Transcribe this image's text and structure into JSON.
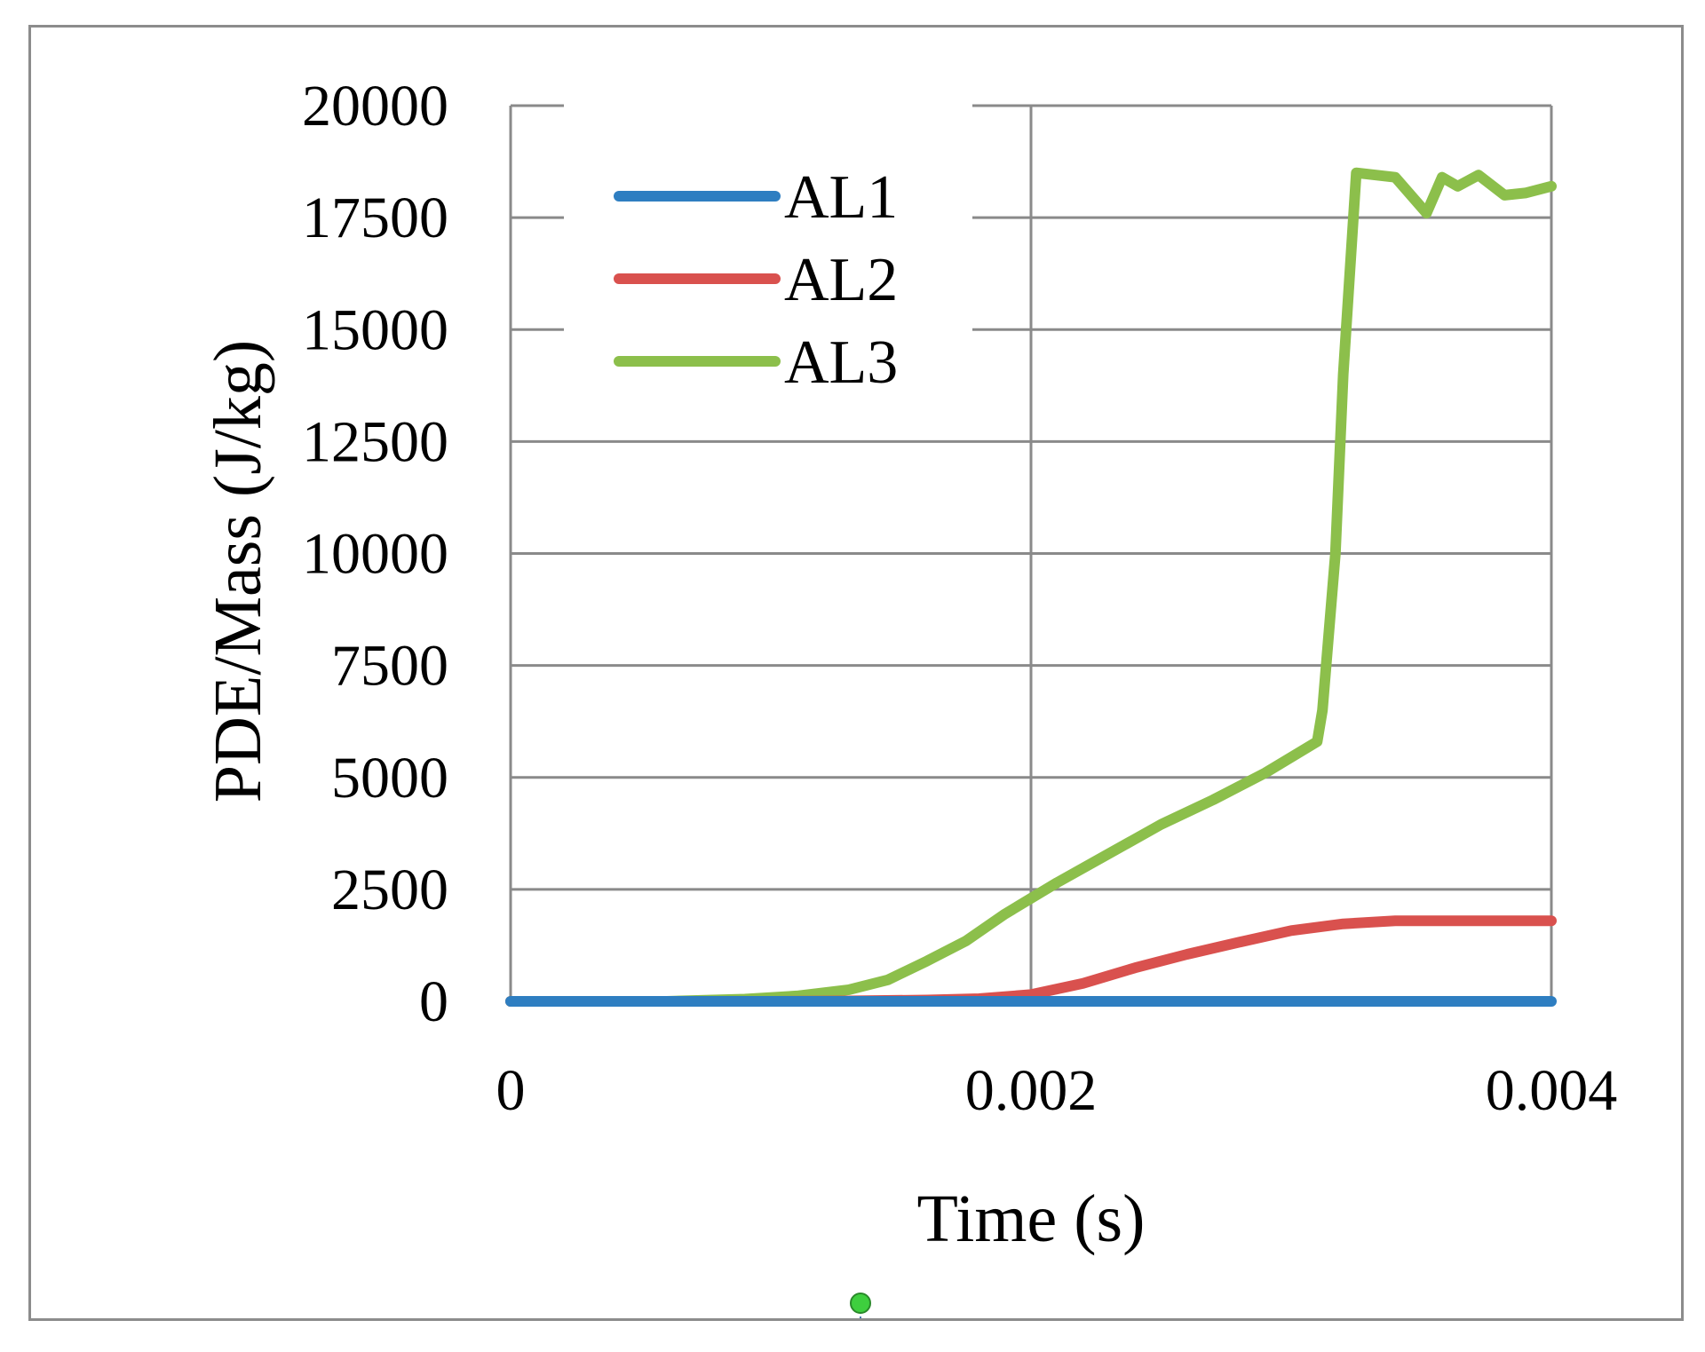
{
  "chart_data": {
    "type": "line",
    "title": "",
    "xlabel": "Time (s)",
    "ylabel": "PDE/Mass (J/kg)",
    "xlim": [
      0,
      0.004
    ],
    "ylim": [
      0,
      20000
    ],
    "x_ticks": [
      0,
      0.002,
      0.004
    ],
    "x_tick_labels": [
      "0",
      "0.002",
      "0.004"
    ],
    "y_ticks": [
      0,
      2500,
      5000,
      7500,
      10000,
      12500,
      15000,
      17500,
      20000
    ],
    "y_tick_labels": [
      "0",
      "2500",
      "5000",
      "7500",
      "10000",
      "12500",
      "15000",
      "17500",
      "20000"
    ],
    "grid": true,
    "legend_position": "top-left",
    "series": [
      {
        "name": "AL1",
        "color": "#2e7ec1",
        "points": [
          [
            0,
            0
          ],
          [
            0.001,
            0
          ],
          [
            0.002,
            0
          ],
          [
            0.003,
            0
          ],
          [
            0.004,
            0
          ]
        ]
      },
      {
        "name": "AL2",
        "color": "#d9514e",
        "points": [
          [
            0,
            0
          ],
          [
            0.001,
            0
          ],
          [
            0.0013,
            10
          ],
          [
            0.0016,
            30
          ],
          [
            0.0018,
            60
          ],
          [
            0.002,
            150
          ],
          [
            0.0022,
            400
          ],
          [
            0.0024,
            750
          ],
          [
            0.0026,
            1050
          ],
          [
            0.0028,
            1320
          ],
          [
            0.003,
            1580
          ],
          [
            0.0032,
            1730
          ],
          [
            0.0034,
            1800
          ],
          [
            0.0036,
            1800
          ],
          [
            0.004,
            1800
          ]
        ]
      },
      {
        "name": "AL3",
        "color": "#8cbf4b",
        "points": [
          [
            0,
            0
          ],
          [
            0.0006,
            0
          ],
          [
            0.0009,
            50
          ],
          [
            0.0011,
            120
          ],
          [
            0.0013,
            260
          ],
          [
            0.00145,
            480
          ],
          [
            0.0016,
            900
          ],
          [
            0.00175,
            1350
          ],
          [
            0.0019,
            1950
          ],
          [
            0.0021,
            2650
          ],
          [
            0.0023,
            3300
          ],
          [
            0.0025,
            3950
          ],
          [
            0.0027,
            4500
          ],
          [
            0.0029,
            5100
          ],
          [
            0.0031,
            5800
          ],
          [
            0.00312,
            6500
          ],
          [
            0.00317,
            10000
          ],
          [
            0.0032,
            14000
          ],
          [
            0.00325,
            18500
          ],
          [
            0.0034,
            18400
          ],
          [
            0.00352,
            17600
          ],
          [
            0.00358,
            18400
          ],
          [
            0.00364,
            18200
          ],
          [
            0.00372,
            18450
          ],
          [
            0.00382,
            18000
          ],
          [
            0.0039,
            18050
          ],
          [
            0.004,
            18200
          ]
        ]
      }
    ]
  }
}
